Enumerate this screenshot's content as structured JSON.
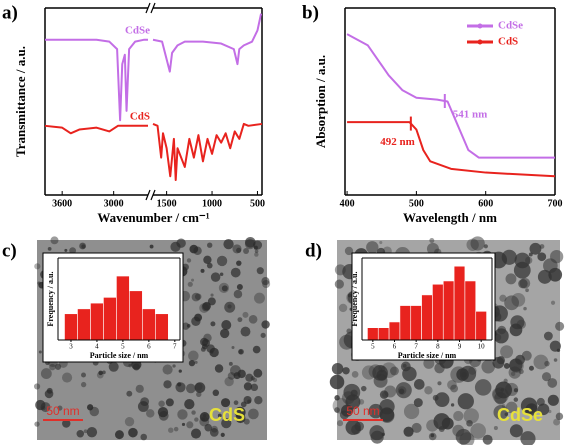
{
  "chart_data": [
    {
      "type": "line",
      "panel_label": "a)",
      "xlabel": "Wavenumber / cm⁻¹",
      "ylabel": "Transmittance / a.u.",
      "x_segments": [
        {
          "xlim": [
            3800,
            2600
          ],
          "xticks": [
            3600,
            3000
          ]
        },
        {
          "xlim": [
            1650,
            450
          ],
          "xticks": [
            1500,
            1000,
            500
          ]
        }
      ],
      "ylim": [
        0,
        100
      ],
      "series": [
        {
          "name": "CdSe",
          "color": "#c36ee6",
          "x": [
            3800,
            3600,
            3400,
            3200,
            3050,
            2960,
            2925,
            2900,
            2870,
            2850,
            2820,
            2750,
            2650,
            2600,
            1650,
            1550,
            1465,
            1440,
            1380,
            1300,
            1100,
            900,
            760,
            720,
            700,
            650,
            560,
            500,
            460
          ],
          "values": [
            83,
            83,
            83,
            83,
            82,
            78,
            40,
            70,
            75,
            45,
            78,
            82,
            83,
            83,
            83,
            82,
            66,
            76,
            80,
            82,
            82,
            81,
            78,
            70,
            78,
            80,
            82,
            88,
            97
          ]
        },
        {
          "name": "CdS",
          "color": "#e8231e",
          "x": [
            3800,
            3600,
            3500,
            3400,
            3200,
            3050,
            2950,
            2800,
            2600,
            1650,
            1600,
            1560,
            1540,
            1500,
            1460,
            1420,
            1400,
            1380,
            1300,
            1250,
            1200,
            1150,
            1100,
            1050,
            1000,
            950,
            900,
            850,
            800,
            750,
            700,
            650,
            600,
            450
          ],
          "values": [
            37,
            36,
            33,
            35,
            36,
            34,
            37,
            37,
            37,
            38,
            37,
            20,
            33,
            25,
            10,
            30,
            8,
            25,
            15,
            30,
            20,
            32,
            18,
            30,
            22,
            32,
            28,
            33,
            25,
            34,
            30,
            38,
            37,
            38
          ]
        }
      ]
    },
    {
      "type": "line",
      "panel_label": "b)",
      "xlabel": "Wavelength / nm",
      "ylabel": "Absorption / a.u.",
      "xlim": [
        397,
        700
      ],
      "xticks": [
        400,
        500,
        600,
        700
      ],
      "ylim": [
        0,
        100
      ],
      "legend": "upper right",
      "series": [
        {
          "name": "CdSe",
          "color": "#c36ee6",
          "x": [
            400,
            430,
            460,
            480,
            500,
            530,
            545,
            560,
            575,
            590,
            620,
            700
          ],
          "values": [
            86,
            80,
            64,
            56,
            52,
            51,
            50,
            37,
            24,
            20,
            20,
            20
          ]
        },
        {
          "name": "CdS",
          "color": "#e8231e",
          "x": [
            400,
            440,
            470,
            490,
            500,
            510,
            520,
            550,
            600,
            700
          ],
          "values": [
            39,
            39,
            39,
            39,
            35,
            24,
            18,
            14,
            12,
            10
          ]
        }
      ],
      "annotations": [
        {
          "text": "541 nm",
          "x": 541,
          "series": 0
        },
        {
          "text": "492 nm",
          "x": 492,
          "series": 1
        }
      ]
    },
    {
      "type": "histogram",
      "panel_label": "c)",
      "xlabel": "Particle size / nm",
      "ylabel": "Frequency / a.u.",
      "bins": [
        2.75,
        3.25,
        3.75,
        4.25,
        4.75,
        5.25,
        5.75,
        6.25,
        6.75
      ],
      "values": [
        0.32,
        0.38,
        0.45,
        0.52,
        0.78,
        0.6,
        0.38,
        0.32
      ],
      "color": "#e8231e",
      "xlim": [
        2.5,
        7.2
      ],
      "xticks": [
        3,
        4,
        5,
        6,
        7
      ],
      "ylim": [
        0,
        1
      ],
      "sample_label": "CdS",
      "scale_bar_label": "50 nm"
    },
    {
      "type": "histogram",
      "panel_label": "d)",
      "xlabel": "Particle size / nm",
      "ylabel": "Frequency / a.u.",
      "bins": [
        4.75,
        5.25,
        5.75,
        6.25,
        6.75,
        7.25,
        7.75,
        8.25,
        8.75,
        9.25,
        9.75,
        10.25
      ],
      "values": [
        0.15,
        0.15,
        0.22,
        0.42,
        0.42,
        0.55,
        0.68,
        0.72,
        0.9,
        0.72,
        0.35
      ],
      "color": "#e8231e",
      "xlim": [
        4.5,
        10.5
      ],
      "xticks": [
        5,
        6,
        7,
        8,
        9,
        10
      ],
      "ylim": [
        0,
        1
      ],
      "sample_label": "CdSe",
      "scale_bar_label": "50 nm"
    }
  ]
}
